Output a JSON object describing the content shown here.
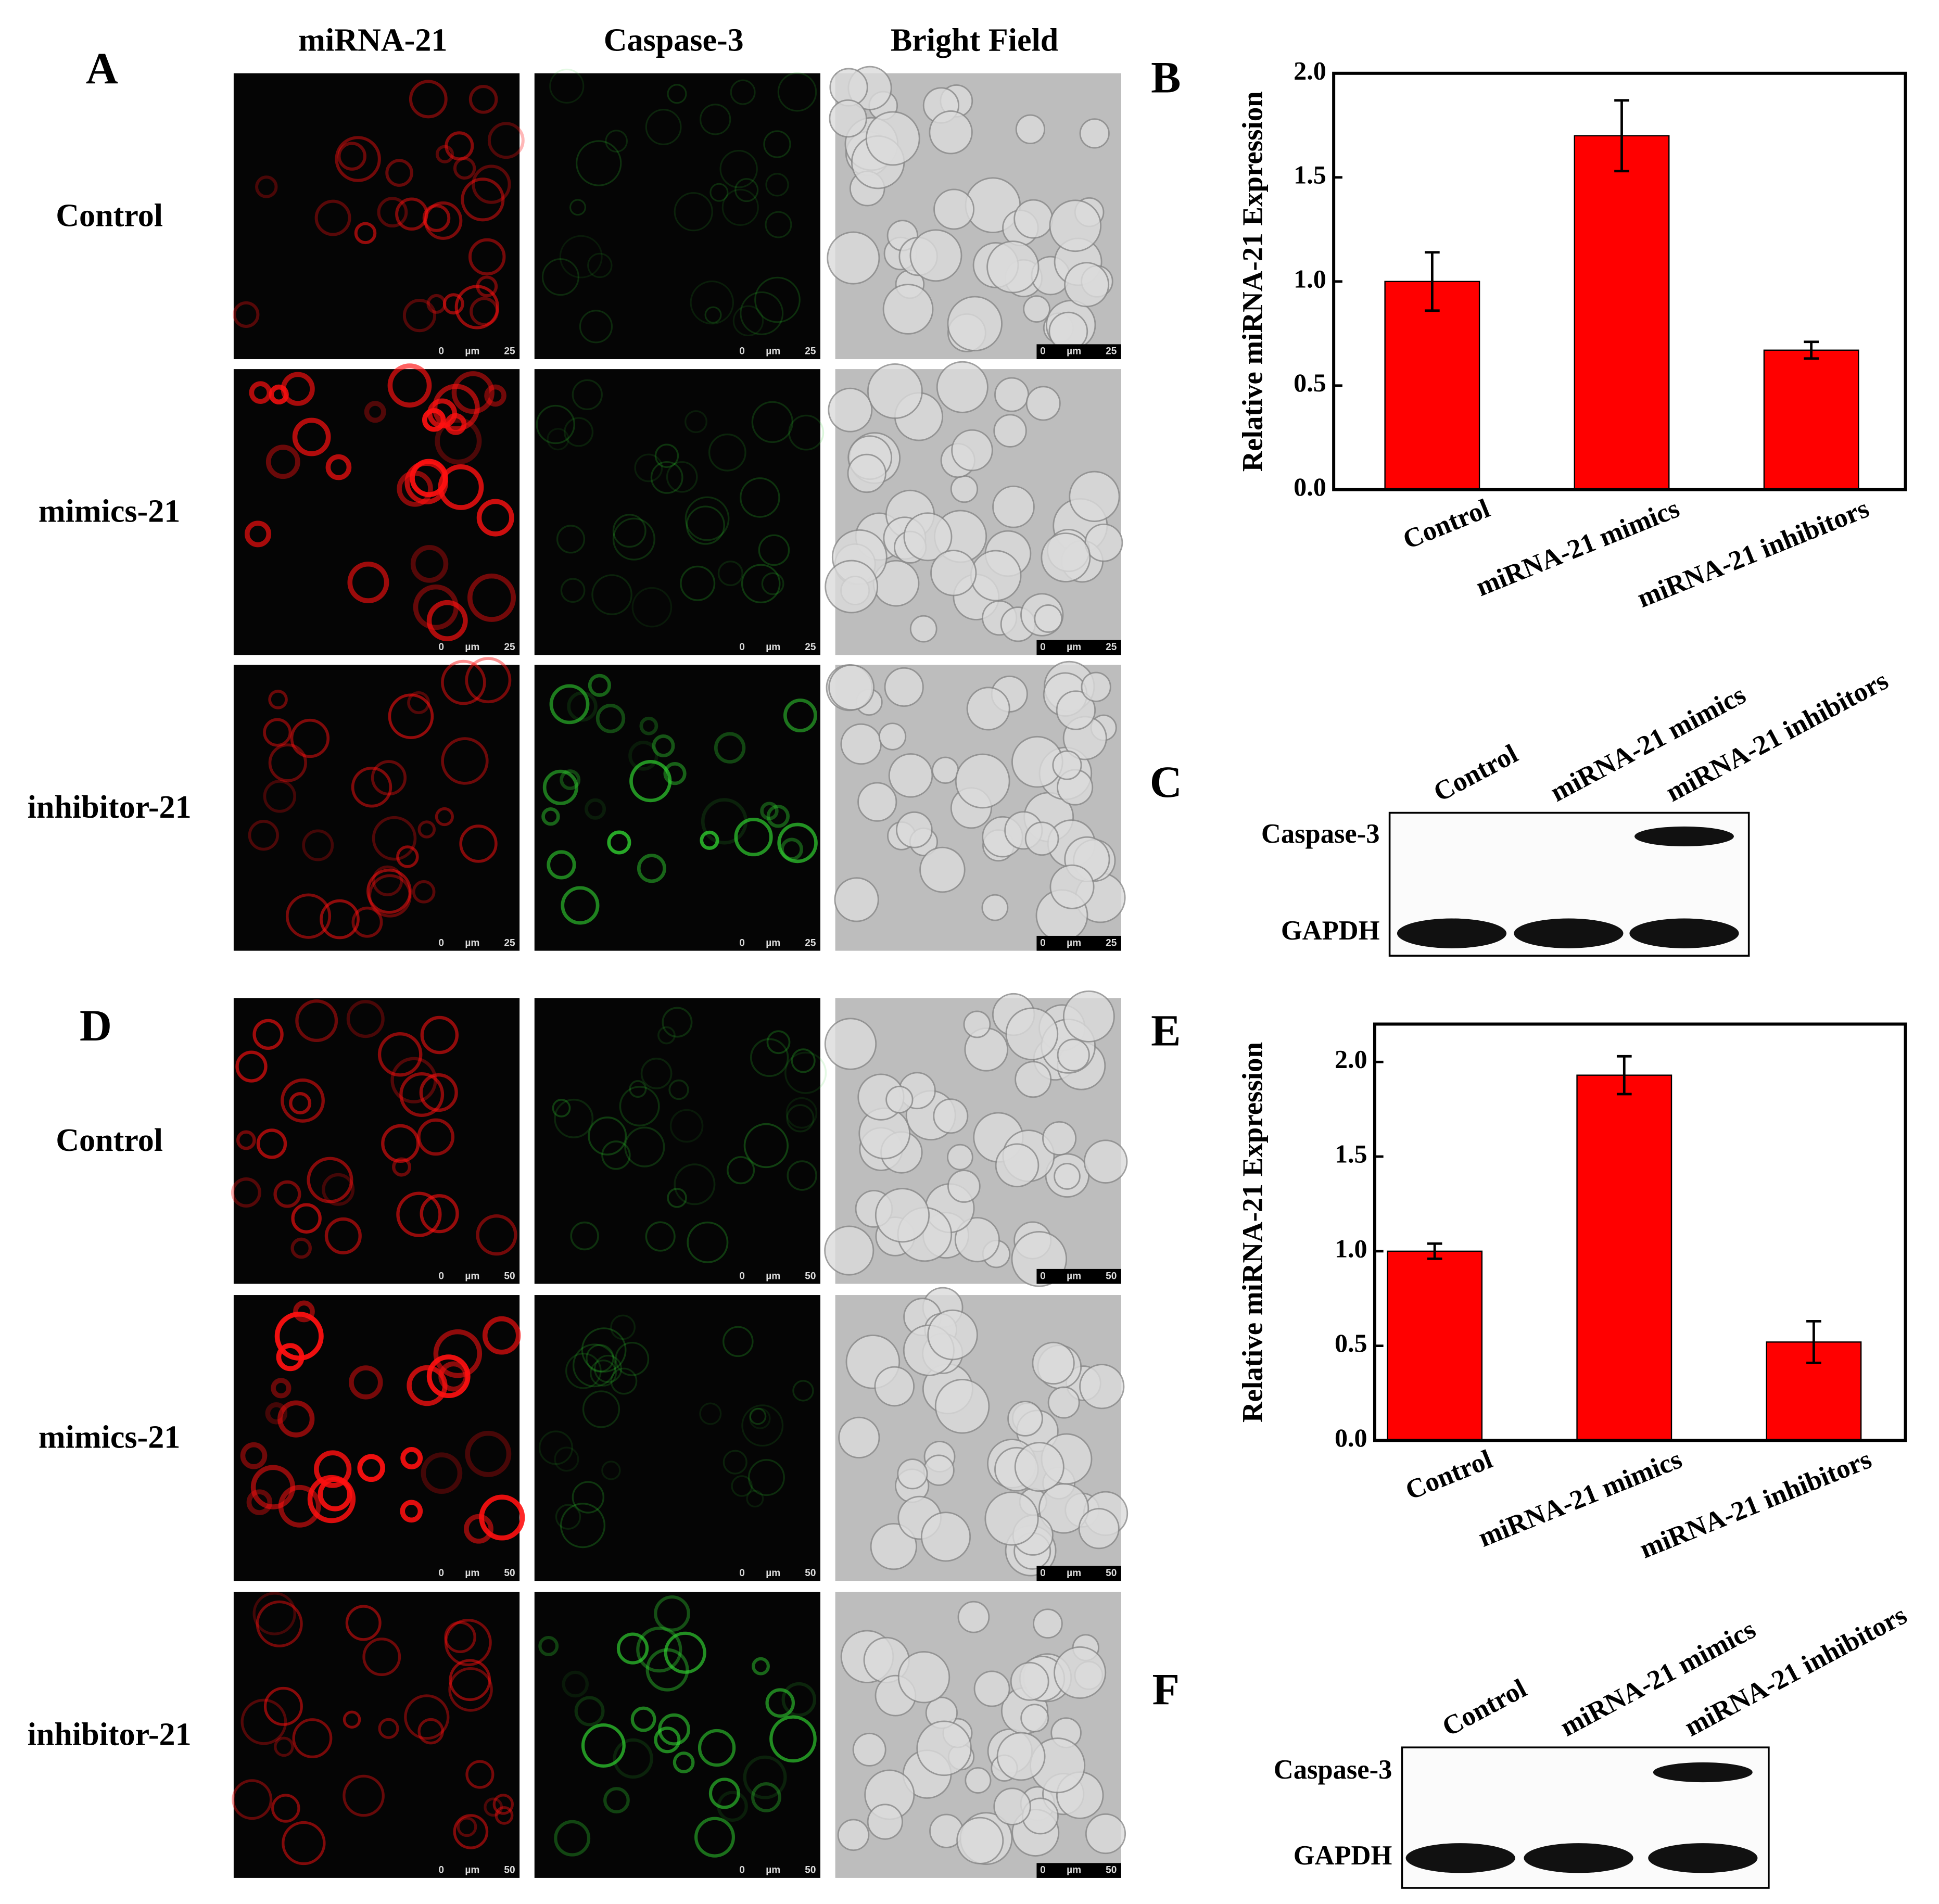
{
  "panels": [
    {
      "letter": "A",
      "columns": [
        "miRNA-21",
        "Caspase-3",
        "Bright Field"
      ],
      "rows": [
        "Control",
        "mimics-21",
        "inhibitor-21"
      ],
      "scale_bar": [
        "0",
        "µm",
        "25"
      ]
    },
    {
      "letter": "D",
      "rows": [
        "Control",
        "mimics-21",
        "inhibitor-21"
      ],
      "scale_bar": [
        "0",
        "µm",
        "50"
      ]
    }
  ],
  "chart_data": [
    {
      "type": "bar",
      "panel_label": "B",
      "ylabel": "Relative miRNA-21 Expression",
      "categories": [
        "Control",
        "miRNA-21 mimics",
        "miRNA-21 inhibitors"
      ],
      "series": [
        {
          "color": "#ff0000",
          "values": [
            1.0,
            1.7,
            0.67
          ],
          "errors": [
            0.14,
            0.17,
            0.04
          ]
        }
      ],
      "ylim": [
        0,
        2
      ],
      "yticks": [
        {
          "value": 0,
          "label": "0.0"
        },
        {
          "value": 0.5,
          "label": "0.5"
        },
        {
          "value": 1,
          "label": "1.0"
        },
        {
          "value": 1.5,
          "label": "1.5"
        },
        {
          "value": 2,
          "label": "2.0"
        }
      ]
    },
    {
      "type": "bar",
      "panel_label": "E",
      "ylabel": "Relative miRNA-21 Expression",
      "categories": [
        "Control",
        "miRNA-21 mimics",
        "miRNA-21 inhibitors"
      ],
      "series": [
        {
          "color": "#ff0000",
          "values": [
            1.0,
            1.93,
            0.52
          ],
          "errors": [
            0.04,
            0.1,
            0.11
          ]
        }
      ],
      "ylim": [
        0,
        2.2
      ],
      "yticks": [
        {
          "value": 0,
          "label": "0.0"
        },
        {
          "value": 0.5,
          "label": "0.5"
        },
        {
          "value": 1,
          "label": "1.0"
        },
        {
          "value": 1.5,
          "label": "1.5"
        },
        {
          "value": 2,
          "label": "2.0"
        }
      ]
    }
  ],
  "blots": [
    {
      "letter": "C",
      "lanes": [
        "Control",
        "miRNA-21 mimics",
        "miRNA-21 inhibitors"
      ],
      "bands": [
        "Caspase-3",
        "GAPDH"
      ]
    },
    {
      "letter": "F",
      "lanes": [
        "Control",
        "miRNA-21 mimics",
        "miRNA-21 inhibitors"
      ],
      "bands": [
        "Caspase-3",
        "GAPDH"
      ]
    }
  ]
}
